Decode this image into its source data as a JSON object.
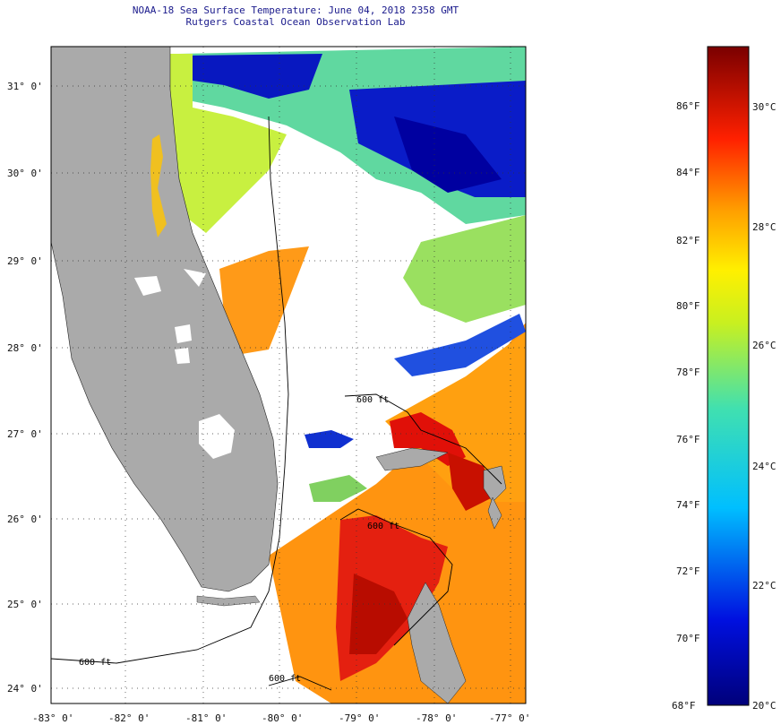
{
  "title": {
    "line1": "NOAA-18 Sea Surface Temperature:  June 04, 2018 2358 GMT",
    "line2": "Rutgers Coastal Ocean Observation Lab"
  },
  "axes": {
    "longitude_ticks": [
      "-83° 0'",
      "-82° 0'",
      "-81° 0'",
      "-80° 0'",
      "-79° 0'",
      "-78° 0'",
      "-77° 0'"
    ],
    "latitude_ticks": [
      "31° 0'",
      "30° 0'",
      "29° 0'",
      "28° 0'",
      "27° 0'",
      "26° 0'",
      "25° 0'",
      "24° 0'"
    ]
  },
  "contours": {
    "depth_label": "600 ft"
  },
  "colorbar": {
    "fahrenheit": [
      "86°F",
      "84°F",
      "82°F",
      "80°F",
      "78°F",
      "76°F",
      "74°F",
      "72°F",
      "70°F",
      "68°F"
    ],
    "celsius": [
      "30°C",
      "28°C",
      "26°C",
      "24°C",
      "22°C",
      "20°C"
    ]
  },
  "colors": {
    "land": "#aaaaaa",
    "clouds": "#ffffff",
    "cold": "#00008b",
    "warm": "#8b0000"
  }
}
